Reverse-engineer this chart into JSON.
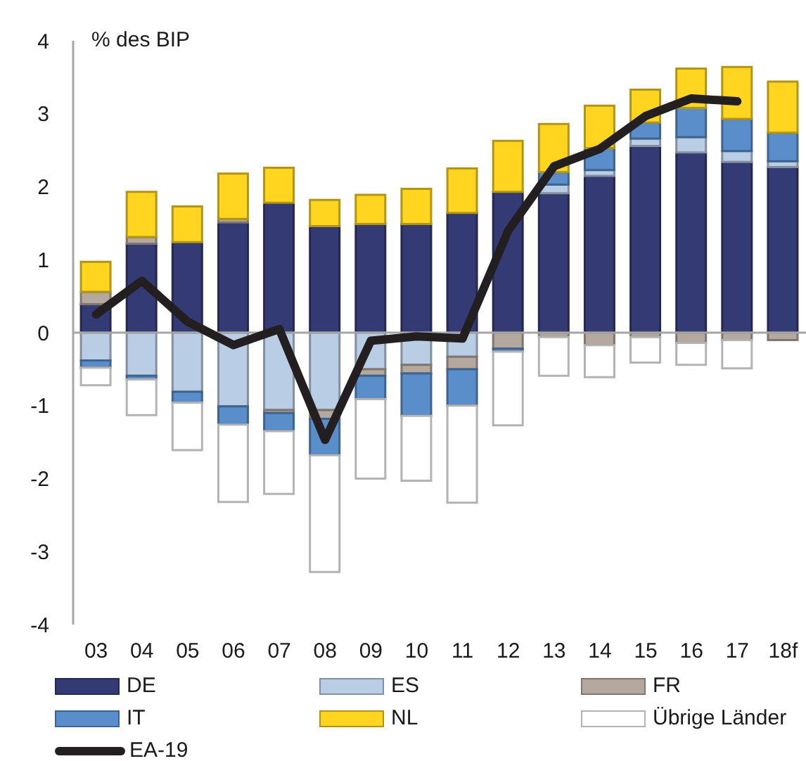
{
  "chart_data": {
    "type": "bar",
    "ylabel": "% des BIP",
    "categories": [
      "03",
      "04",
      "05",
      "06",
      "07",
      "08",
      "09",
      "10",
      "11",
      "12",
      "13",
      "14",
      "15",
      "16",
      "17",
      "18f"
    ],
    "stacked": true,
    "ylim": [
      -4,
      4
    ],
    "yticks": [
      -4,
      -3,
      -2,
      -1,
      0,
      1,
      2,
      3,
      4
    ],
    "legend": "bottom",
    "marker": "none",
    "line_style": "solid",
    "series": [
      {
        "name": "DE",
        "color": "#343a73",
        "values": [
          0.39,
          1.22,
          1.24,
          1.51,
          1.78,
          1.46,
          1.49,
          1.49,
          1.64,
          1.93,
          1.91,
          2.15,
          2.56,
          2.47,
          2.34,
          2.27
        ]
      },
      {
        "name": "ES",
        "color": "#b9cde5",
        "values": [
          -0.38,
          -0.59,
          -0.81,
          -1.01,
          -1.06,
          -1.06,
          -0.5,
          -0.44,
          -0.33,
          null,
          0.12,
          0.08,
          0.1,
          0.21,
          0.15,
          0.08
        ]
      },
      {
        "name": "FR",
        "color": "#b5a89f",
        "values": [
          0.17,
          0.09,
          null,
          0.05,
          -0.04,
          -0.12,
          -0.09,
          -0.12,
          -0.17,
          -0.22,
          -0.06,
          -0.17,
          -0.06,
          -0.14,
          -0.1,
          -0.1
        ]
      },
      {
        "name": "IT",
        "color": "#5a8ecb",
        "values": [
          -0.1,
          -0.05,
          -0.15,
          -0.25,
          -0.25,
          -0.5,
          -0.32,
          -0.58,
          -0.5,
          -0.04,
          0.17,
          0.3,
          0.22,
          0.4,
          0.44,
          0.39
        ]
      },
      {
        "name": "NL",
        "color": "#ffd520",
        "values": [
          0.41,
          0.62,
          0.49,
          0.62,
          0.48,
          0.36,
          0.4,
          0.48,
          0.61,
          0.7,
          0.66,
          0.58,
          0.45,
          0.54,
          0.71,
          0.7
        ]
      },
      {
        "name": "Übrige Länder",
        "color": "#ffffff",
        "values": [
          -0.24,
          -0.49,
          -0.65,
          -1.06,
          -0.86,
          -1.6,
          -1.09,
          -0.89,
          -1.33,
          -1.01,
          -0.53,
          -0.44,
          -0.35,
          -0.3,
          -0.39,
          null
        ]
      },
      {
        "name": "EA-19",
        "type": "line",
        "color": "#231f20",
        "values": [
          0.25,
          0.71,
          0.15,
          -0.17,
          0.05,
          -1.47,
          -0.11,
          -0.05,
          -0.08,
          1.4,
          2.28,
          2.52,
          2.97,
          3.21,
          3.17,
          null
        ]
      }
    ]
  }
}
